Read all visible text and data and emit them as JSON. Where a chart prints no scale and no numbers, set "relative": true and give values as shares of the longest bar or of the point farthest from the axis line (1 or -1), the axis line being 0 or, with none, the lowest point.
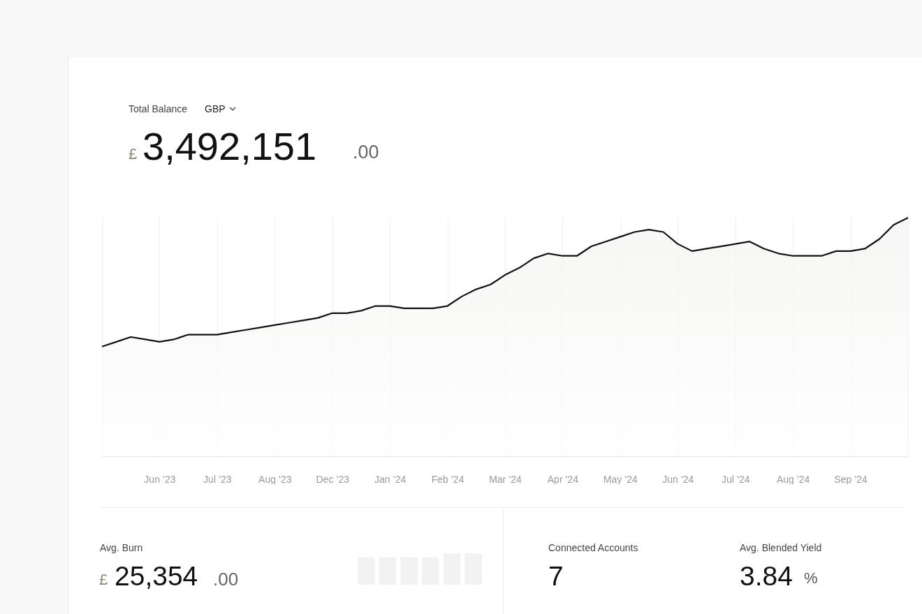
{
  "chart_data": [
    {
      "type": "area",
      "title": "Total Balance",
      "annotations": [
        "GBP",
        "£",
        "3,492,151",
        ".00"
      ],
      "relative": true,
      "color": "#111111",
      "grid": "x",
      "tick_labels": "x",
      "categories": [
        null,
        null,
        null,
        null,
        "Jun ’23",
        null,
        null,
        null,
        "Jul ’23",
        null,
        null,
        null,
        "Aug ’23",
        null,
        null,
        null,
        "Dec ’23",
        null,
        null,
        null,
        "Jan ’24",
        null,
        null,
        null,
        "Feb ’24",
        null,
        null,
        null,
        "Mar ’24",
        null,
        null,
        null,
        "Apr ’24",
        null,
        null,
        null,
        "May ’24",
        null,
        null,
        null,
        "Jun ’24",
        null,
        null,
        null,
        "Jul ’24",
        null,
        null,
        null,
        "Aug ’24",
        null,
        null,
        null,
        "Sep ’24",
        null,
        null,
        null,
        null
      ],
      "values": [
        0.46,
        0.48,
        0.5,
        0.49,
        0.48,
        0.49,
        0.51,
        0.51,
        0.51,
        0.52,
        0.53,
        0.54,
        0.55,
        0.56,
        0.57,
        0.58,
        0.6,
        0.6,
        0.61,
        0.63,
        0.63,
        0.62,
        0.62,
        0.62,
        0.63,
        0.67,
        0.7,
        0.72,
        0.76,
        0.79,
        0.83,
        0.85,
        0.84,
        0.84,
        0.88,
        0.9,
        0.92,
        0.94,
        0.95,
        0.94,
        0.89,
        0.86,
        0.87,
        0.88,
        0.89,
        0.9,
        0.87,
        0.85,
        0.84,
        0.84,
        0.84,
        0.86,
        0.86,
        0.87,
        0.91,
        0.97,
        1
      ]
    },
    {
      "type": "other",
      "title": "Avg. Burn",
      "annotations": [
        "£",
        "25,354",
        ".00"
      ]
    },
    {
      "type": "bar",
      "relative": true,
      "tick_labels": false,
      "color": "#f2f2f2",
      "categories": [
        null,
        null,
        null,
        null,
        null,
        null
      ],
      "values": [
        0.87,
        0.87,
        0.87,
        0.87,
        1,
        1
      ]
    },
    {
      "type": "other",
      "title": "Connected Accounts",
      "annotations": [
        "7"
      ]
    },
    {
      "type": "other",
      "title": "Avg. Blended Yield",
      "annotations": [
        "3.84",
        "%"
      ]
    }
  ]
}
